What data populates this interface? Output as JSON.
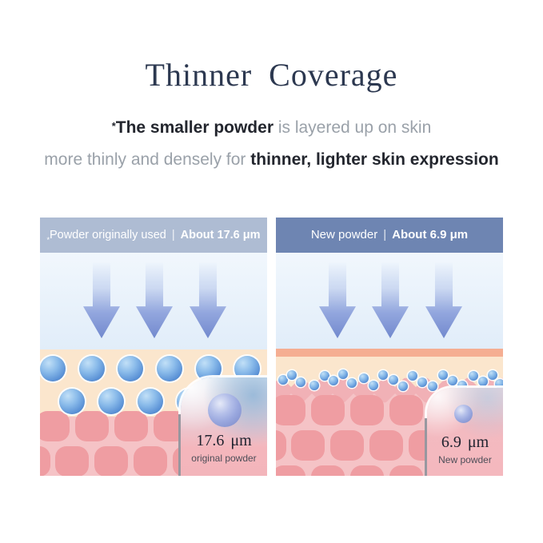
{
  "title": "Thinner Coverage",
  "subtitle": {
    "line1_asterisk": "*",
    "line1_bold": "The smaller powder",
    "line1_rest": " is layered up on skin",
    "line2_start": "more thinly and densely for ",
    "line2_bold": "thinner, lighter skin expression"
  },
  "panels": [
    {
      "id": "original-powder",
      "header_asterisk": "*",
      "header_label": "Powder originally used",
      "header_separator": "|",
      "header_value": "About 17.6 μm",
      "callout_value": "17.6 μm",
      "callout_label": "original powder"
    },
    {
      "id": "new-powder",
      "header_asterisk": "",
      "header_label": "New powder",
      "header_separator": "|",
      "header_value": "About 6.9 μm",
      "callout_value": "6.9 μm",
      "callout_label": "New powder"
    }
  ],
  "colors": {
    "title_text": "#2c3850",
    "body_emphasis": "#23262e",
    "body_muted": "#9aa1a9",
    "header_original_bg": "#aebcd3",
    "header_new_bg": "#6e85b2",
    "header_text": "#ffffff",
    "sky": "#e8f1fa",
    "arrow": "#7289ce",
    "surface_peach": "#fbe6cd",
    "surface_salmon": "#f5ae92",
    "dermis_base": "#f5c3c6",
    "dermis_cell": "#ef9da2",
    "powder_blue": "#5b92d6",
    "callout_value_text": "#20232f",
    "callout_label_text": "#4e4e58"
  }
}
